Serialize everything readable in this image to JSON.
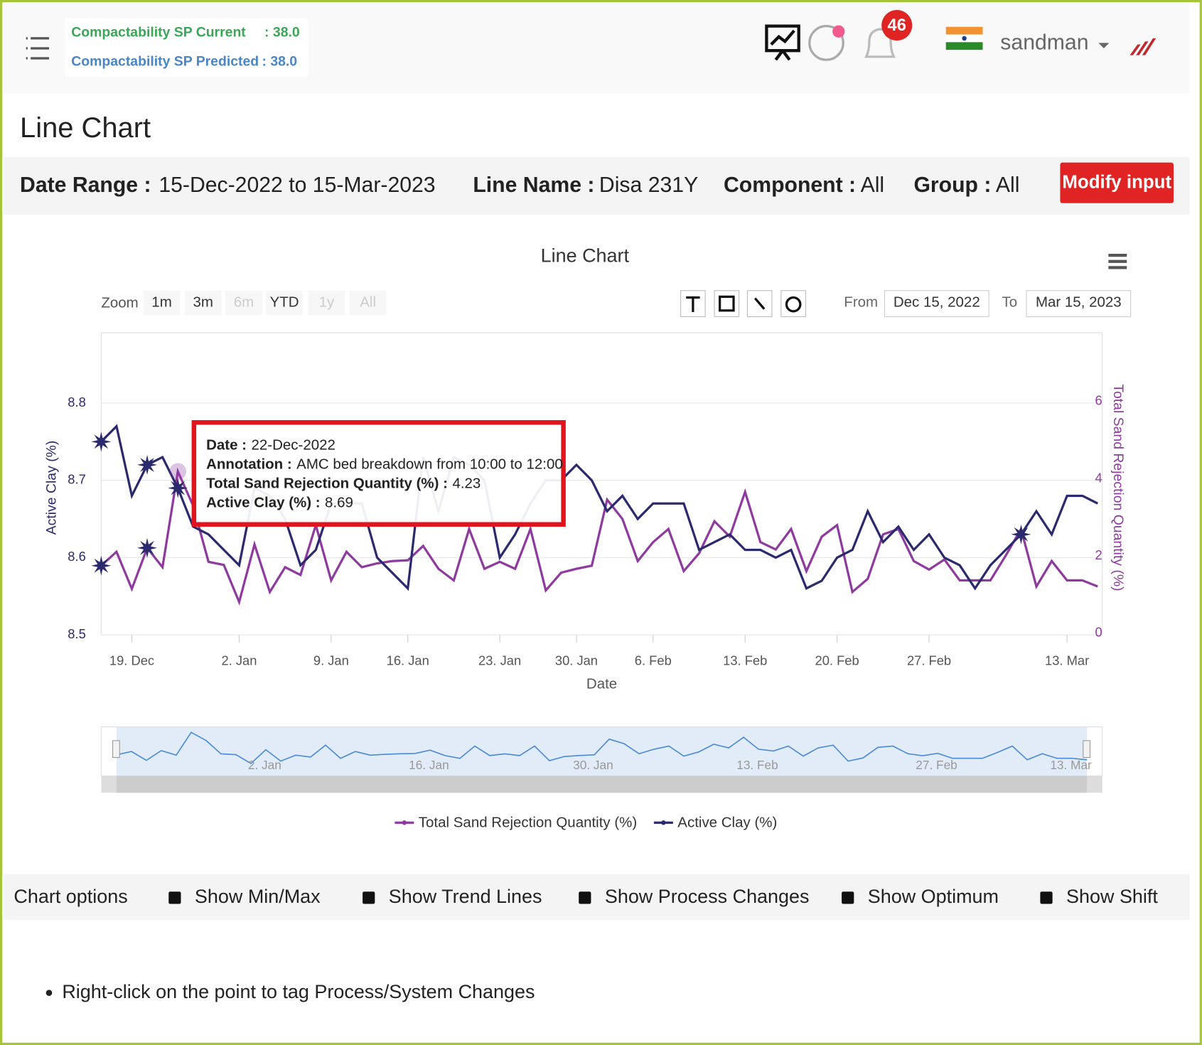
{
  "header": {
    "sp_current_label": "Compactability SP Current",
    "sp_current_value": ": 38.0",
    "sp_predicted_label": "Compactability SP Predicted",
    "sp_predicted_value": ": 38.0",
    "notification_count": "46",
    "user": "sandman"
  },
  "page_title": "Line Chart",
  "filters": [
    {
      "label": "Date Range :",
      "value": "15-Dec-2022 to 15-Mar-2023"
    },
    {
      "label": "Line Name :",
      "value": "Disa 231Y"
    },
    {
      "label": "Component :",
      "value": "All"
    },
    {
      "label": "Group :",
      "value": "All"
    }
  ],
  "modify_button": "Modify input",
  "chart_data": {
    "type": "line",
    "title": "Line Chart",
    "x_label": "Date",
    "y_label": "Active Clay (%)",
    "y2_label": "Total Sand Rejection Quantity (%)",
    "zoom": {
      "label": "Zoom",
      "buttons": [
        {
          "text": "1m",
          "enabled": true
        },
        {
          "text": "3m",
          "enabled": true
        },
        {
          "text": "6m",
          "enabled": false
        },
        {
          "text": "YTD",
          "enabled": true
        },
        {
          "text": "1y",
          "enabled": false
        },
        {
          "text": "All",
          "enabled": false
        }
      ]
    },
    "range": {
      "from_label": "From",
      "from": "Dec 15, 2022",
      "to_label": "To",
      "to": "Mar 15, 2023"
    },
    "categories": [
      null,
      null,
      "19. Dec",
      null,
      null,
      null,
      null,
      null,
      null,
      "2. Jan",
      null,
      null,
      null,
      null,
      null,
      "9. Jan",
      null,
      null,
      null,
      null,
      "16. Jan",
      null,
      null,
      null,
      null,
      null,
      "23. Jan",
      null,
      null,
      null,
      null,
      "30. Jan",
      null,
      null,
      null,
      null,
      "6. Feb",
      null,
      null,
      null,
      null,
      null,
      "13. Feb",
      null,
      null,
      null,
      null,
      null,
      "20. Feb",
      null,
      null,
      null,
      null,
      null,
      "27. Feb",
      null,
      null,
      null,
      null,
      null,
      null,
      null,
      null,
      "13. Mar",
      null,
      null
    ],
    "series": [
      {
        "name": "Total Sand Rejection Quantity (%)",
        "color": "#8e3a9e",
        "axis": "y2",
        "annotated": [
          0,
          3
        ],
        "values": [
          1.79,
          2.15,
          1.19,
          2.25,
          1.75,
          4.23,
          3.34,
          1.89,
          1.81,
          0.85,
          2.34,
          1.11,
          1.75,
          1.55,
          2.84,
          1.41,
          2.15,
          1.75,
          1.85,
          1.91,
          1.93,
          2.3,
          1.71,
          1.41,
          2.74,
          1.71,
          1.89,
          1.71,
          2.74,
          1.15,
          1.61,
          1.71,
          1.79,
          3.5,
          3.0,
          1.91,
          2.4,
          2.74,
          1.65,
          2.11,
          2.94,
          2.54,
          3.7,
          2.4,
          2.21,
          2.74,
          1.65,
          2.54,
          2.84,
          1.11,
          1.45,
          2.6,
          2.74,
          1.91,
          1.69,
          1.95,
          1.41,
          1.41,
          1.41,
          2.05,
          2.74,
          1.25,
          1.91,
          1.41,
          1.41,
          1.25
        ]
      },
      {
        "name": "Active Clay (%)",
        "color": "#2b2a6e",
        "annotated": [
          0,
          3,
          5,
          60
        ],
        "values": [
          8.75,
          8.77,
          8.68,
          8.72,
          8.73,
          8.69,
          8.64,
          8.63,
          8.61,
          8.59,
          8.69,
          8.68,
          8.65,
          8.59,
          8.61,
          8.67,
          8.67,
          8.67,
          8.6,
          8.58,
          8.56,
          8.73,
          8.66,
          8.73,
          8.72,
          8.7,
          8.6,
          8.63,
          8.67,
          8.7,
          8.7,
          8.72,
          8.7,
          8.66,
          8.68,
          8.65,
          8.67,
          8.67,
          8.67,
          8.61,
          8.62,
          8.63,
          8.61,
          8.61,
          8.6,
          8.61,
          8.56,
          8.57,
          8.6,
          8.61,
          8.66,
          8.62,
          8.64,
          8.61,
          8.63,
          8.6,
          8.59,
          8.56,
          8.59,
          8.61,
          8.63,
          8.66,
          8.63,
          8.68,
          8.68,
          8.67
        ]
      }
    ],
    "ylim": [
      8.5,
      8.9
    ],
    "yticks": [
      8.5,
      8.6,
      8.7,
      8.8
    ],
    "y2lim": [
      0,
      8
    ],
    "y2ticks": [
      0,
      2,
      4,
      6
    ],
    "grid": true,
    "legend": "bottom",
    "tooltip": {
      "index": 5,
      "lines": [
        {
          "label": "Date :",
          "value": "22-Dec-2022"
        },
        {
          "label": "Annotation :",
          "value": "AMC bed breakdown from 10:00 to 12:00"
        },
        {
          "label": "Total Sand Rejection Quantity (%) :",
          "value": "4.23"
        },
        {
          "label": "Active Clay (%) :",
          "value": "8.69"
        }
      ]
    }
  },
  "chart_options": {
    "label": "Chart options",
    "options": [
      "Show Min/Max",
      "Show Trend Lines",
      "Show Process Changes",
      "Show Optimum",
      "Show Shift"
    ]
  },
  "note": "Right-click on the point to tag Process/System Changes"
}
